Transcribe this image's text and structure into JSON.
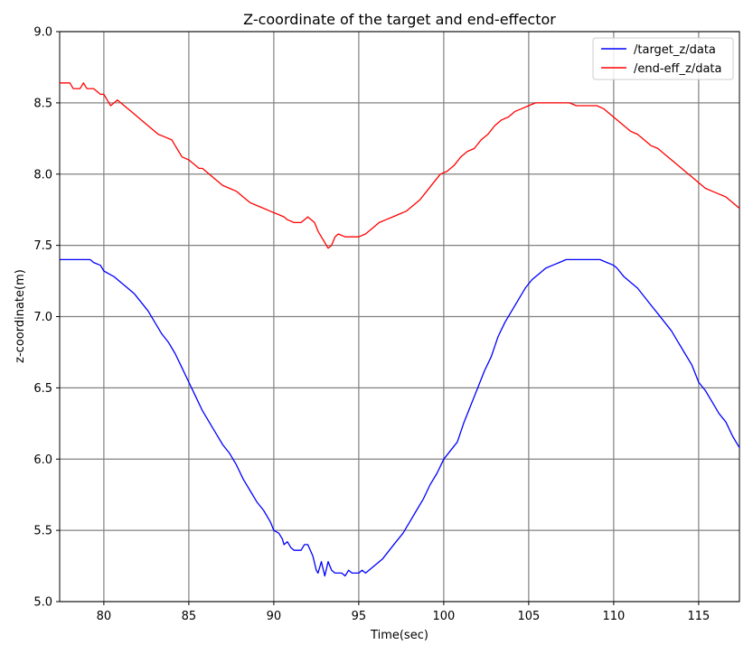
{
  "chart_data": {
    "type": "line",
    "title": "Z-coordinate of the target and end-effector",
    "xlabel": "Time(sec)",
    "ylabel": "z-coordinate(m)",
    "xlim": [
      77.4,
      117.4
    ],
    "ylim": [
      5.0,
      9.0
    ],
    "xticks": [
      "80",
      "85",
      "90",
      "95",
      "100",
      "105",
      "110",
      "115"
    ],
    "yticks": [
      "5.0",
      "5.5",
      "6.0",
      "6.5",
      "7.0",
      "7.5",
      "8.0",
      "8.5",
      "9.0"
    ],
    "grid": true,
    "legend_position": "top-right",
    "series": [
      {
        "name": "/target_z/data",
        "color": "#0000ff",
        "x": [
          77.4,
          79.2,
          79.4,
          79.8,
          80.0,
          80.3,
          80.6,
          81.0,
          81.4,
          81.8,
          82.2,
          82.6,
          83.0,
          83.4,
          83.8,
          84.2,
          84.6,
          85.0,
          85.4,
          85.8,
          86.2,
          86.6,
          87.0,
          87.4,
          87.8,
          88.2,
          88.6,
          89.0,
          89.4,
          89.8,
          90.0,
          90.3,
          90.5,
          90.6,
          90.8,
          91.0,
          91.2,
          91.6,
          91.8,
          92.0,
          92.3,
          92.5,
          92.6,
          92.8,
          93.0,
          93.2,
          93.4,
          93.6,
          93.8,
          94.0,
          94.2,
          94.4,
          94.6,
          94.8,
          95.0,
          95.2,
          95.4,
          95.6,
          96.0,
          96.4,
          96.8,
          97.2,
          97.6,
          98.0,
          98.4,
          98.8,
          99.2,
          99.6,
          100.0,
          100.4,
          100.8,
          101.2,
          101.6,
          102.0,
          102.4,
          102.8,
          103.2,
          103.6,
          104.0,
          104.4,
          104.8,
          105.2,
          105.6,
          106.0,
          106.4,
          106.8,
          107.2,
          107.6,
          108.0,
          108.4,
          108.8,
          109.2,
          109.6,
          110.0,
          110.2,
          110.6,
          111.0,
          111.4,
          111.8,
          112.2,
          112.6,
          113.0,
          113.4,
          113.8,
          114.2,
          114.6,
          115.0,
          115.4,
          115.8,
          116.2,
          116.6,
          117.0,
          117.4
        ],
        "y": [
          7.4,
          7.4,
          7.38,
          7.36,
          7.32,
          7.3,
          7.28,
          7.24,
          7.2,
          7.16,
          7.1,
          7.04,
          6.96,
          6.88,
          6.82,
          6.74,
          6.64,
          6.54,
          6.44,
          6.34,
          6.26,
          6.18,
          6.1,
          6.04,
          5.96,
          5.86,
          5.78,
          5.7,
          5.64,
          5.56,
          5.5,
          5.48,
          5.44,
          5.4,
          5.42,
          5.38,
          5.36,
          5.36,
          5.4,
          5.4,
          5.32,
          5.22,
          5.2,
          5.28,
          5.18,
          5.28,
          5.22,
          5.2,
          5.2,
          5.2,
          5.18,
          5.22,
          5.2,
          5.2,
          5.2,
          5.22,
          5.2,
          5.22,
          5.26,
          5.3,
          5.36,
          5.42,
          5.48,
          5.56,
          5.64,
          5.72,
          5.82,
          5.9,
          6.0,
          6.06,
          6.12,
          6.26,
          6.38,
          6.5,
          6.62,
          6.72,
          6.86,
          6.96,
          7.04,
          7.12,
          7.2,
          7.26,
          7.3,
          7.34,
          7.36,
          7.38,
          7.4,
          7.4,
          7.4,
          7.4,
          7.4,
          7.4,
          7.38,
          7.36,
          7.34,
          7.28,
          7.24,
          7.2,
          7.14,
          7.08,
          7.02,
          6.96,
          6.9,
          6.82,
          6.74,
          6.66,
          6.54,
          6.48,
          6.4,
          6.32,
          6.26,
          6.16,
          6.08
        ]
      },
      {
        "name": "/end-eff_z/data",
        "color": "#ff0000",
        "x": [
          77.4,
          78.0,
          78.2,
          78.6,
          78.8,
          79.0,
          79.4,
          79.8,
          80.0,
          80.2,
          80.4,
          80.8,
          81.2,
          81.6,
          82.0,
          82.4,
          82.8,
          83.2,
          83.6,
          84.0,
          84.2,
          84.4,
          84.6,
          85.0,
          85.2,
          85.4,
          85.6,
          85.8,
          86.2,
          86.6,
          87.0,
          87.4,
          87.8,
          88.2,
          88.6,
          89.0,
          89.4,
          89.8,
          90.2,
          90.6,
          90.8,
          91.2,
          91.6,
          92.0,
          92.4,
          92.6,
          92.8,
          93.0,
          93.2,
          93.4,
          93.6,
          93.8,
          94.2,
          94.6,
          95.0,
          95.4,
          95.8,
          96.2,
          96.6,
          97.0,
          97.4,
          97.8,
          98.2,
          98.6,
          99.0,
          99.4,
          99.8,
          100.2,
          100.6,
          101.0,
          101.4,
          101.8,
          102.2,
          102.6,
          103.0,
          103.4,
          103.8,
          104.2,
          104.6,
          105.0,
          105.4,
          105.8,
          106.2,
          106.6,
          107.0,
          107.4,
          107.8,
          108.2,
          108.6,
          109.0,
          109.4,
          109.8,
          110.2,
          110.6,
          111.0,
          111.4,
          111.8,
          112.2,
          112.6,
          113.0,
          113.4,
          113.8,
          114.2,
          114.6,
          115.0,
          115.4,
          115.8,
          116.2,
          116.6,
          117.0,
          117.4
        ],
        "y": [
          8.64,
          8.64,
          8.6,
          8.6,
          8.64,
          8.6,
          8.6,
          8.56,
          8.56,
          8.52,
          8.48,
          8.52,
          8.48,
          8.44,
          8.4,
          8.36,
          8.32,
          8.28,
          8.26,
          8.24,
          8.2,
          8.16,
          8.12,
          8.1,
          8.08,
          8.06,
          8.04,
          8.04,
          8.0,
          7.96,
          7.92,
          7.9,
          7.88,
          7.84,
          7.8,
          7.78,
          7.76,
          7.74,
          7.72,
          7.7,
          7.68,
          7.66,
          7.66,
          7.7,
          7.66,
          7.6,
          7.56,
          7.52,
          7.48,
          7.5,
          7.56,
          7.58,
          7.56,
          7.56,
          7.56,
          7.58,
          7.62,
          7.66,
          7.68,
          7.7,
          7.72,
          7.74,
          7.78,
          7.82,
          7.88,
          7.94,
          8.0,
          8.02,
          8.06,
          8.12,
          8.16,
          8.18,
          8.24,
          8.28,
          8.34,
          8.38,
          8.4,
          8.44,
          8.46,
          8.48,
          8.5,
          8.5,
          8.5,
          8.5,
          8.5,
          8.5,
          8.48,
          8.48,
          8.48,
          8.48,
          8.46,
          8.42,
          8.38,
          8.34,
          8.3,
          8.28,
          8.24,
          8.2,
          8.18,
          8.14,
          8.1,
          8.06,
          8.02,
          7.98,
          7.94,
          7.9,
          7.88,
          7.86,
          7.84,
          7.8,
          7.76
        ]
      }
    ]
  }
}
